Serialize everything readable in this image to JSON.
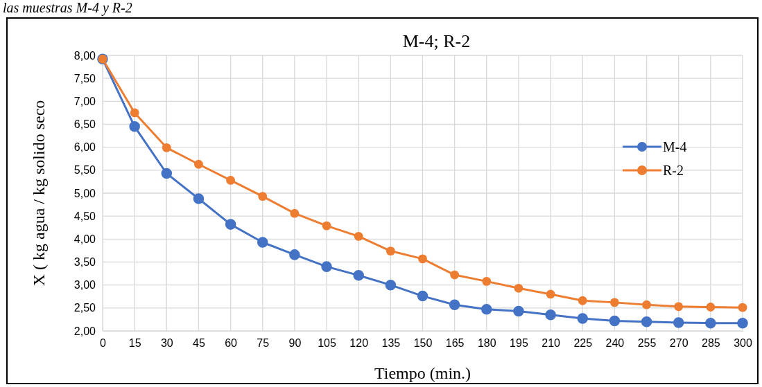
{
  "chart_data": {
    "type": "line",
    "title": "M-4; R-2",
    "xlabel": "Tiempo (min.)",
    "ylabel": "X ( kg agua / kg solido seco",
    "annotations": [
      "las muestras M-4 y R-2"
    ],
    "categories": [
      "0",
      "15",
      "30",
      "45",
      "60",
      "75",
      "90",
      "105",
      "120",
      "135",
      "150",
      "165",
      "180",
      "195",
      "210",
      "225",
      "240",
      "255",
      "270",
      "285",
      "300"
    ],
    "series": [
      {
        "name": "M-4",
        "color": "#4472c4",
        "values": [
          7.92,
          6.45,
          5.43,
          4.88,
          4.32,
          3.93,
          3.66,
          3.4,
          3.21,
          3.0,
          2.76,
          2.57,
          2.47,
          2.43,
          2.35,
          2.27,
          2.22,
          2.2,
          2.18,
          2.17,
          2.17
        ]
      },
      {
        "name": "R-2",
        "color": "#ed7d31",
        "values": [
          7.92,
          6.75,
          5.99,
          5.63,
          5.28,
          4.93,
          4.56,
          4.29,
          4.06,
          3.74,
          3.57,
          3.22,
          3.08,
          2.93,
          2.8,
          2.66,
          2.62,
          2.57,
          2.53,
          2.52,
          2.51
        ]
      }
    ],
    "ylim": [
      2,
      8
    ],
    "yticks": [
      {
        "value": 2,
        "label": "2,00"
      },
      {
        "value": 2.5,
        "label": "2,50"
      },
      {
        "value": 3,
        "label": "3,00"
      },
      {
        "value": 3.5,
        "label": "3,50"
      },
      {
        "value": 4,
        "label": "4,00"
      },
      {
        "value": 4.5,
        "label": "4,50"
      },
      {
        "value": 5,
        "label": "5,00"
      },
      {
        "value": 5.5,
        "label": "5,50"
      },
      {
        "value": 6,
        "label": "6,00"
      },
      {
        "value": 6.5,
        "label": "6,50"
      },
      {
        "value": 7,
        "label": "7,00"
      },
      {
        "value": 7.5,
        "label": "7,50"
      },
      {
        "value": 8,
        "label": "8,00"
      }
    ],
    "grid": true,
    "legend": "right",
    "marker": "circle",
    "line_style": "solid"
  }
}
